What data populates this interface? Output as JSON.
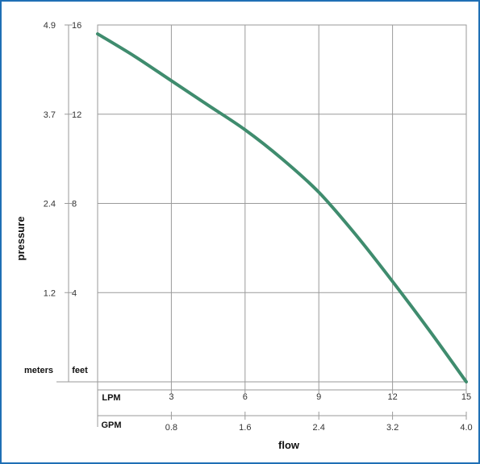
{
  "chart_data": {
    "type": "line",
    "xlabel": "flow",
    "ylabel": "pressure",
    "x_axes": [
      {
        "unit": "LPM",
        "ticks": [
          3,
          6,
          9,
          12,
          15
        ]
      },
      {
        "unit": "GPM",
        "ticks": [
          "0.8",
          "1.6",
          "2.4",
          "3.2",
          "4.0"
        ]
      }
    ],
    "y_axes": [
      {
        "unit": "meters",
        "ticks": [
          "4.9",
          "3.7",
          "2.4",
          "1.2"
        ]
      },
      {
        "unit": "feet",
        "ticks": [
          16,
          12,
          8,
          4
        ]
      }
    ],
    "xlim": [
      0,
      15
    ],
    "ylim": [
      0,
      16
    ],
    "grid": true,
    "series": [
      {
        "x": [
          0,
          1.5,
          3,
          4.5,
          6,
          7.5,
          9,
          10.5,
          12,
          13.5,
          15
        ],
        "y": [
          15.6,
          14.6,
          13.5,
          12.4,
          11.3,
          10.0,
          8.5,
          6.6,
          4.5,
          2.3,
          0
        ],
        "color": "#3f8c6e"
      }
    ]
  }
}
